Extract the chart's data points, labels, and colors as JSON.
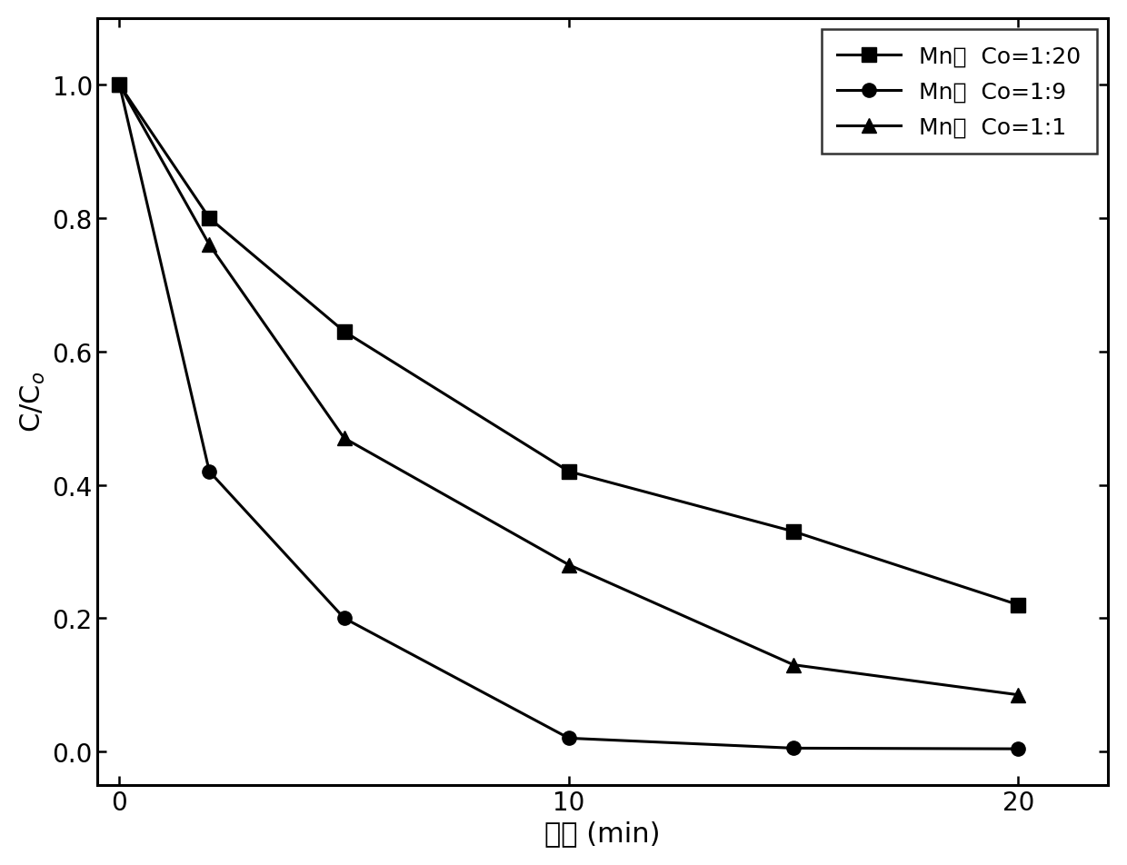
{
  "series": [
    {
      "label": "Mn：  Co=1:20",
      "x": [
        0,
        2,
        5,
        10,
        15,
        20
      ],
      "y": [
        1.0,
        0.8,
        0.63,
        0.42,
        0.33,
        0.22
      ],
      "marker": "s",
      "color": "#000000"
    },
    {
      "label": "Mn：  Co=1:9",
      "x": [
        0,
        2,
        5,
        10,
        15,
        20
      ],
      "y": [
        1.0,
        0.42,
        0.2,
        0.02,
        0.005,
        0.004
      ],
      "marker": "o",
      "color": "#000000"
    },
    {
      "label": "Mn：  Co=1:1",
      "x": [
        0,
        2,
        5,
        10,
        15,
        20
      ],
      "y": [
        1.0,
        0.76,
        0.47,
        0.28,
        0.13,
        0.085
      ],
      "marker": "^",
      "color": "#000000"
    }
  ],
  "xlabel": "时间 (min)",
  "ylabel": "C/C$_o$",
  "xlim": [
    -0.5,
    22
  ],
  "ylim": [
    -0.05,
    1.1
  ],
  "xticks": [
    0,
    10,
    20
  ],
  "yticks": [
    0.0,
    0.2,
    0.4,
    0.6,
    0.8,
    1.0
  ],
  "legend_loc": "upper right",
  "markersize": 11,
  "linewidth": 2.2,
  "label_fontsize": 22,
  "tick_fontsize": 20,
  "legend_fontsize": 18,
  "background_color": "#ffffff"
}
